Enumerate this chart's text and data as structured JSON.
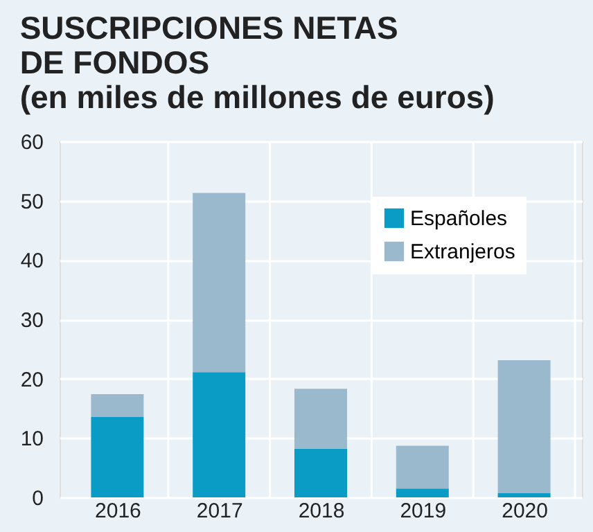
{
  "chart_data": {
    "type": "bar",
    "title": [
      "SUSCRIPCIONES NETAS",
      "DE FONDOS",
      "(en miles de millones de euros)"
    ],
    "categories": [
      "2016",
      "2017",
      "2018",
      "2019",
      "2020"
    ],
    "stacked": true,
    "series": [
      {
        "name": "Españoles",
        "color": "#0b9cc6",
        "values": [
          13.6,
          21.1,
          8.2,
          1.5,
          0.7
        ]
      },
      {
        "name": "Extranjeros",
        "color": "#9bb9cc",
        "values": [
          3.8,
          30.2,
          10.1,
          7.2,
          22.4
        ]
      }
    ],
    "ylim": [
      0,
      60
    ],
    "yticks": [
      0,
      10,
      20,
      30,
      40,
      50,
      60
    ],
    "grid": true,
    "legend": "top right"
  }
}
